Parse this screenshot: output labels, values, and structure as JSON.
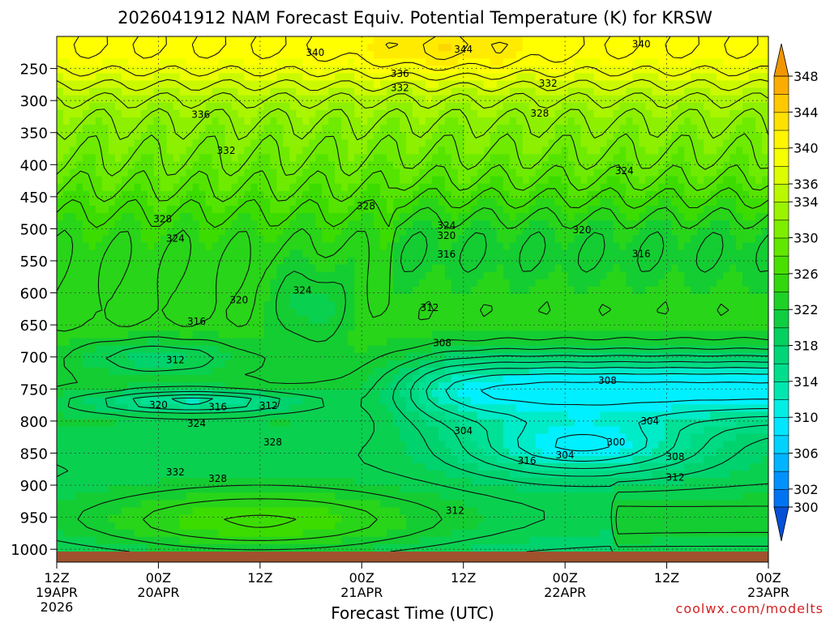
{
  "chart_data": {
    "type": "heatmap",
    "title": "2026041912 NAM Forecast Equiv. Potential Temperature (K) for KRSW",
    "xlabel": "Forecast Time (UTC)",
    "ylabel": "",
    "credit": "coolwx.com/modelts",
    "x_ticks": [
      {
        "label": "12Z",
        "sub": "19APR",
        "year": "2026",
        "hour": 0
      },
      {
        "label": "00Z",
        "sub": "20APR",
        "hour": 12
      },
      {
        "label": "12Z",
        "sub": "",
        "hour": 24
      },
      {
        "label": "00Z",
        "sub": "21APR",
        "hour": 36
      },
      {
        "label": "12Z",
        "sub": "",
        "hour": 48
      },
      {
        "label": "00Z",
        "sub": "22APR",
        "hour": 60
      },
      {
        "label": "12Z",
        "sub": "",
        "hour": 72
      },
      {
        "label": "00Z",
        "sub": "23APR",
        "hour": 84
      }
    ],
    "xlim": [
      0,
      84
    ],
    "y_ticks": [
      "250",
      "300",
      "350",
      "400",
      "450",
      "500",
      "550",
      "600",
      "650",
      "700",
      "750",
      "800",
      "850",
      "900",
      "950",
      "1000"
    ],
    "y_tick_values": [
      250,
      300,
      350,
      400,
      450,
      500,
      550,
      600,
      650,
      700,
      750,
      800,
      850,
      900,
      950,
      1000
    ],
    "ylim": [
      200,
      1020
    ],
    "colorbar": {
      "levels": [
        298,
        300,
        302,
        304,
        306,
        308,
        310,
        312,
        314,
        316,
        318,
        320,
        322,
        324,
        326,
        328,
        330,
        332,
        334,
        336,
        338,
        340,
        342,
        344,
        346,
        348,
        350
      ],
      "tick_labels": [
        "300",
        "302",
        "306",
        "310",
        "314",
        "318",
        "322",
        "326",
        "330",
        "334",
        "336",
        "340",
        "344",
        "348"
      ],
      "tick_values": [
        300,
        302,
        306,
        310,
        314,
        318,
        322,
        326,
        330,
        334,
        336,
        340,
        344,
        348
      ]
    },
    "contour_labels": [
      {
        "text": "340",
        "h": 30.5,
        "p": 225
      },
      {
        "text": "344",
        "h": 48,
        "p": 220
      },
      {
        "text": "340",
        "h": 69,
        "p": 212
      },
      {
        "text": "336",
        "h": 40.5,
        "p": 258
      },
      {
        "text": "332",
        "h": 40.5,
        "p": 280
      },
      {
        "text": "332",
        "h": 58,
        "p": 273
      },
      {
        "text": "336",
        "h": 17,
        "p": 322
      },
      {
        "text": "328",
        "h": 57,
        "p": 320
      },
      {
        "text": "332",
        "h": 20,
        "p": 378
      },
      {
        "text": "324",
        "h": 67,
        "p": 410
      },
      {
        "text": "328",
        "h": 36.5,
        "p": 465
      },
      {
        "text": "328",
        "h": 12.5,
        "p": 485
      },
      {
        "text": "324",
        "h": 14,
        "p": 515
      },
      {
        "text": "324",
        "h": 46,
        "p": 495
      },
      {
        "text": "320",
        "h": 46,
        "p": 511
      },
      {
        "text": "320",
        "h": 62,
        "p": 502
      },
      {
        "text": "316",
        "h": 46,
        "p": 540
      },
      {
        "text": "316",
        "h": 69,
        "p": 539
      },
      {
        "text": "324",
        "h": 29,
        "p": 596
      },
      {
        "text": "320",
        "h": 21.5,
        "p": 611
      },
      {
        "text": "316",
        "h": 16.5,
        "p": 645
      },
      {
        "text": "312",
        "h": 44,
        "p": 623
      },
      {
        "text": "308",
        "h": 45.5,
        "p": 678
      },
      {
        "text": "312",
        "h": 14,
        "p": 705
      },
      {
        "text": "308",
        "h": 65,
        "p": 737
      },
      {
        "text": "320",
        "h": 12,
        "p": 775
      },
      {
        "text": "316",
        "h": 19,
        "p": 778
      },
      {
        "text": "312",
        "h": 25,
        "p": 776
      },
      {
        "text": "324",
        "h": 16.5,
        "p": 804
      },
      {
        "text": "304",
        "h": 48,
        "p": 815
      },
      {
        "text": "304",
        "h": 70,
        "p": 800
      },
      {
        "text": "328",
        "h": 25.5,
        "p": 833
      },
      {
        "text": "300",
        "h": 66,
        "p": 833
      },
      {
        "text": "316",
        "h": 55.5,
        "p": 862
      },
      {
        "text": "304",
        "h": 60,
        "p": 853
      },
      {
        "text": "308",
        "h": 73,
        "p": 856
      },
      {
        "text": "332",
        "h": 14,
        "p": 880
      },
      {
        "text": "328",
        "h": 19,
        "p": 890
      },
      {
        "text": "312",
        "h": 73,
        "p": 888
      },
      {
        "text": "312",
        "h": 47,
        "p": 940
      }
    ]
  }
}
